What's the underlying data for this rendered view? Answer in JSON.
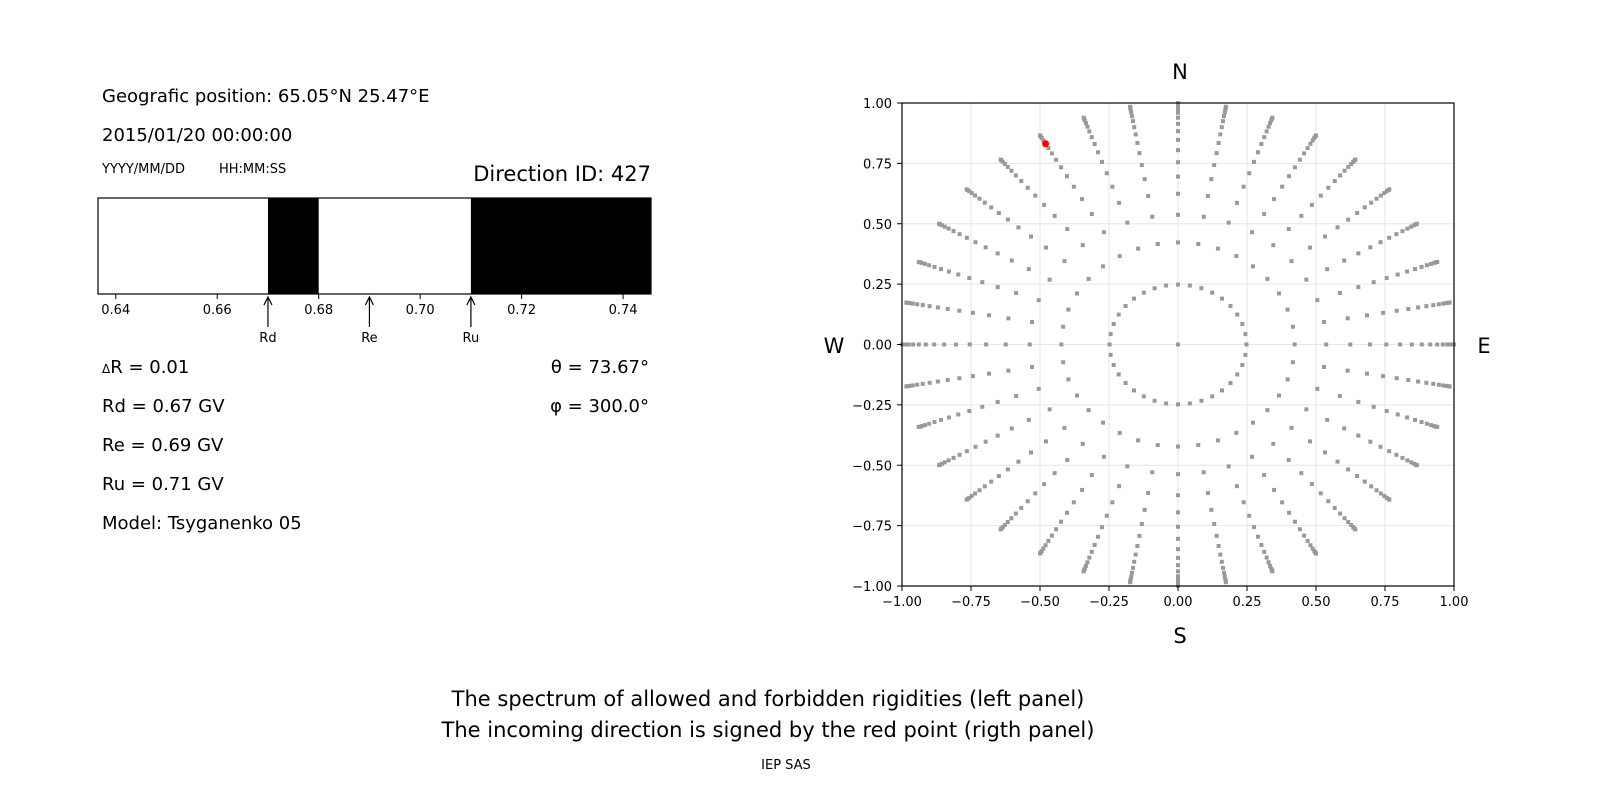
{
  "header": {
    "geo_position": "Geografic position: 65.05°N 25.47°E",
    "datetime": "2015/01/20 00:00:00",
    "date_format_label": "YYYY/MM/DD",
    "time_format_label": "HH:MM:SS",
    "direction_id": "Direction ID: 427"
  },
  "parameters": {
    "delta_r_symbol": "Δ",
    "delta_r": "R = 0.01",
    "rd": "Rd = 0.67 GV",
    "re": "Re = 0.69 GV",
    "ru": "Ru = 0.71 GV",
    "model": "Model: Tsyganenko 05",
    "theta": "θ = 73.67°",
    "phi": "φ = 300.0°"
  },
  "captions": {
    "line1": "The spectrum of allowed and forbidden rigidities (left panel)",
    "line2": "The incoming direction is signed by the red point (rigth panel)",
    "credit": "IEP SAS"
  },
  "chart_data": [
    {
      "type": "bar",
      "description_role": "rigidity spectrum",
      "xlim": [
        0.6365,
        0.7455
      ],
      "xticks": [
        "0.64",
        "0.66",
        "0.68",
        "0.70",
        "0.72",
        "0.74"
      ],
      "xtick_values": [
        0.64,
        0.66,
        0.68,
        0.7,
        0.72,
        0.74
      ],
      "forbidden_intervals": [
        [
          0.67,
          0.68
        ],
        [
          0.71,
          0.7455
        ]
      ],
      "colors": {
        "allowed": "#ffffff",
        "forbidden": "#000000"
      },
      "markers": [
        {
          "label": "Rd",
          "value": 0.67
        },
        {
          "label": "Re",
          "value": 0.69
        },
        {
          "label": "Ru",
          "value": 0.71
        }
      ]
    },
    {
      "type": "scatter",
      "xlim": [
        -1.0,
        1.0
      ],
      "ylim": [
        -1.0,
        1.0
      ],
      "xticks": [
        "−1.00",
        "−0.75",
        "−0.50",
        "−0.25",
        "0.00",
        "0.25",
        "0.50",
        "0.75",
        "1.00"
      ],
      "yticks": [
        "−1.00",
        "−0.75",
        "−0.50",
        "−0.25",
        "0.00",
        "0.25",
        "0.50",
        "0.75",
        "1.00"
      ],
      "tick_values": [
        -1.0,
        -0.75,
        -0.5,
        -0.25,
        0.0,
        0.25,
        0.5,
        0.75,
        1.0
      ],
      "grid": true,
      "compass": {
        "north": "N",
        "south": "S",
        "west": "W",
        "east": "E"
      },
      "direction_grid": {
        "zenith_angles_deg": [
          0,
          14.36,
          25.0,
          32.48,
          38.62,
          44.05,
          48.99,
          53.58,
          57.91,
          62.05,
          66.03,
          69.89,
          73.67,
          77.36,
          81.01,
          84.62,
          88.21
        ],
        "azimuth_step_deg": 10
      },
      "selected_direction": {
        "theta_deg": 73.67,
        "phi_deg": 300.0
      },
      "colors": {
        "points": "#999999",
        "selected": "#ff0000"
      }
    }
  ]
}
